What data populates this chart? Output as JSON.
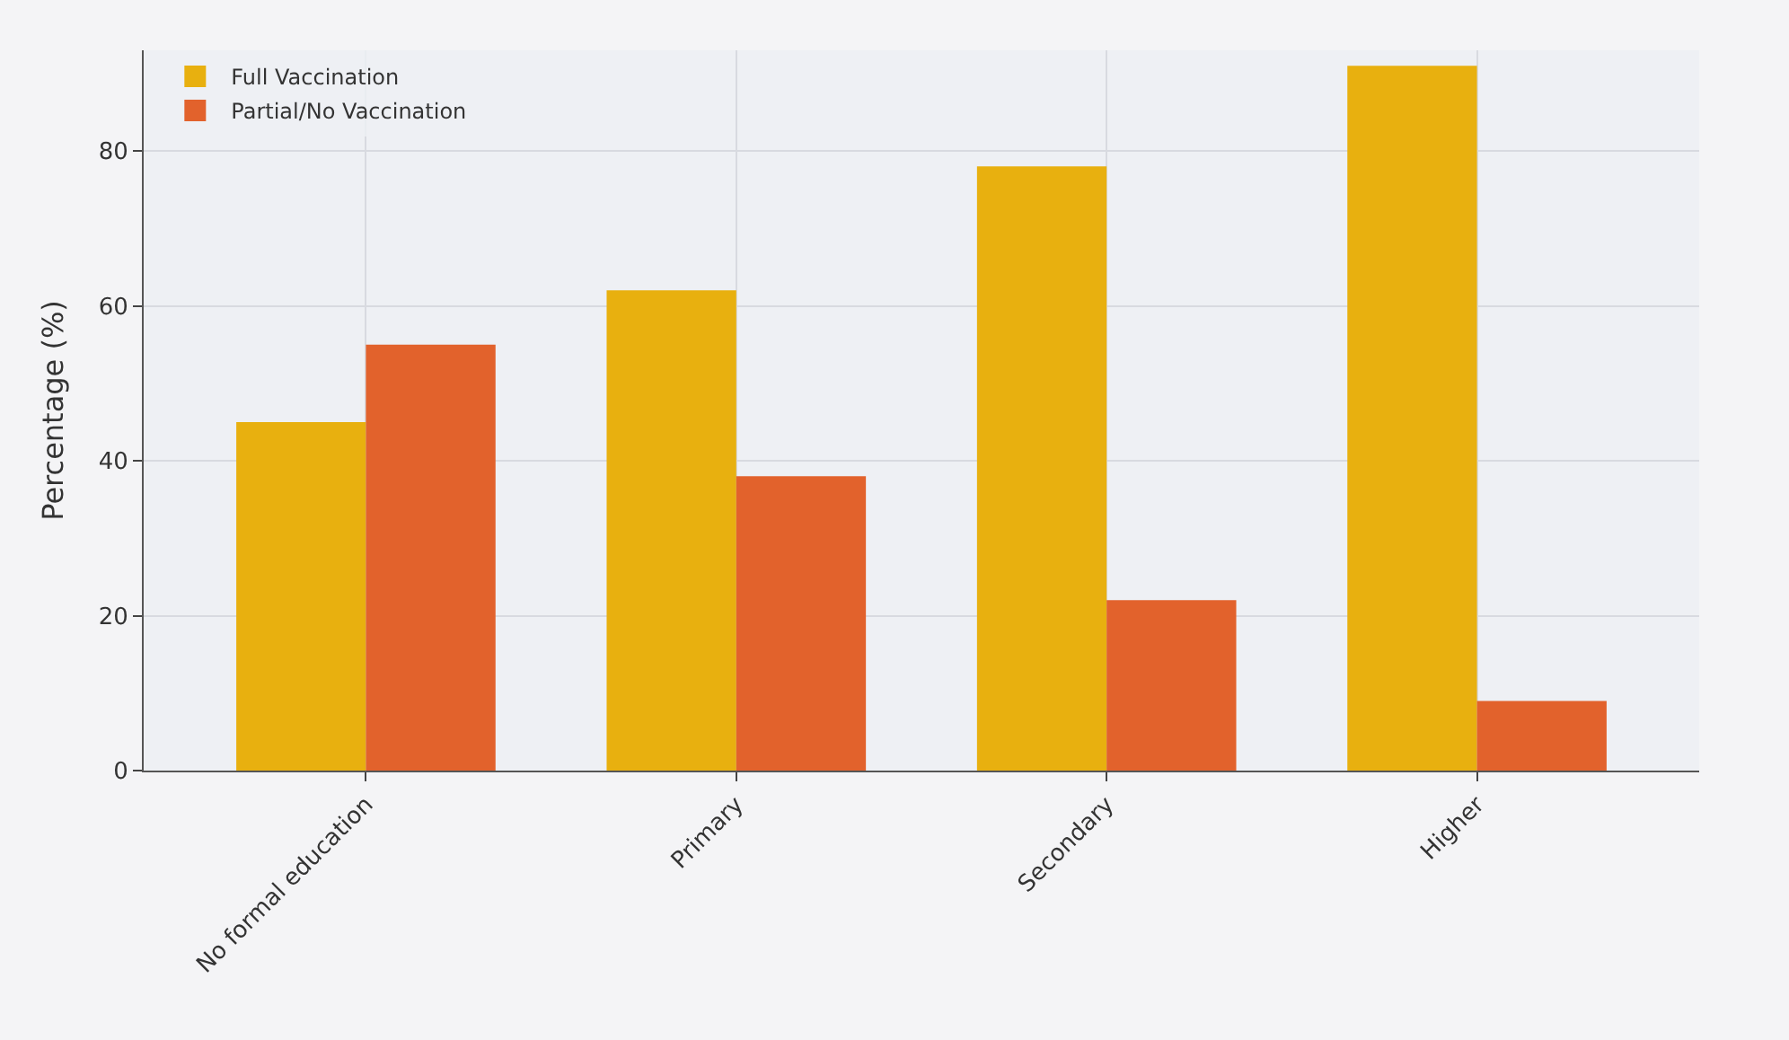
{
  "chart_data": {
    "type": "bar",
    "ylabel": "Percentage (%)",
    "categories": [
      "No formal education",
      "Primary",
      "Secondary",
      "Higher"
    ],
    "series": [
      {
        "name": "Full Vaccination",
        "color": "#e8b00f",
        "values": [
          45,
          62,
          78,
          91
        ]
      },
      {
        "name": "Partial/No Vaccination",
        "color": "#e2622c",
        "values": [
          55,
          38,
          22,
          9
        ]
      }
    ],
    "ylim": [
      0,
      93
    ],
    "yticks": [
      0,
      20,
      40,
      60,
      80
    ],
    "grid": true,
    "legend": "top left"
  }
}
